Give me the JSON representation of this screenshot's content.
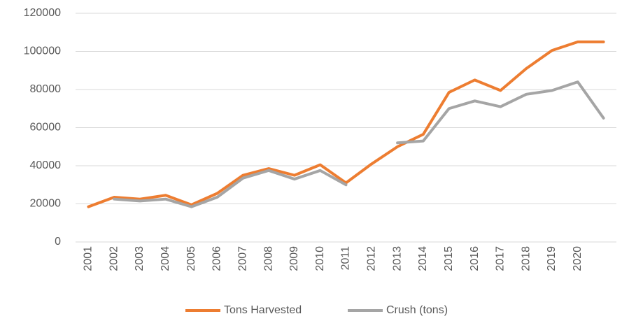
{
  "chart_data": {
    "type": "line",
    "categories": [
      "2001",
      "2002",
      "2003",
      "2004",
      "2005",
      "2006",
      "2007",
      "2008",
      "2009",
      "2010",
      "2011",
      "2012",
      "2013",
      "2014",
      "2015",
      "2016",
      "2017",
      "2018",
      "2019",
      "2020",
      null
    ],
    "series": [
      {
        "name": "Tons Harvested",
        "color": "#ed7d31",
        "values": [
          18500,
          23500,
          22500,
          24500,
          19500,
          25500,
          35000,
          38500,
          35000,
          40500,
          31000,
          41000,
          50000,
          56500,
          78500,
          85000,
          79500,
          91000,
          100500,
          105000,
          105000
        ]
      },
      {
        "name": "Crush (tons)",
        "color": "#a5a5a5",
        "values": [
          null,
          22500,
          21500,
          22500,
          18500,
          23500,
          33500,
          37500,
          33000,
          37500,
          30000,
          null,
          52000,
          53000,
          70000,
          74000,
          71000,
          77500,
          79500,
          84000,
          65000
        ]
      }
    ],
    "ylim": [
      0,
      120000
    ],
    "yticks": [
      0,
      20000,
      40000,
      60000,
      80000,
      100000,
      120000
    ],
    "grid": true,
    "legend": "bottom"
  }
}
